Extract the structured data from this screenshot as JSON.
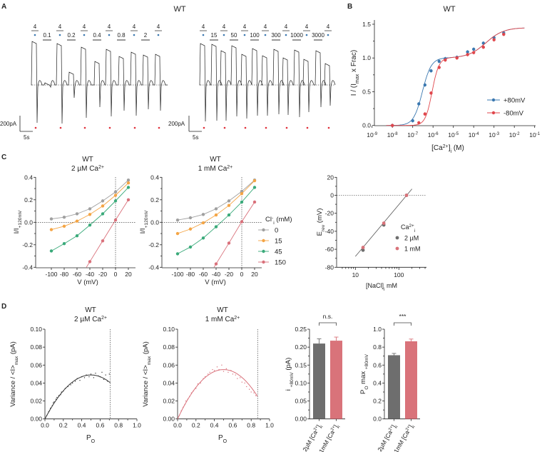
{
  "panel_labels": {
    "A": "A",
    "B": "B",
    "C": "C",
    "D": "D"
  },
  "chart_data": [
    {
      "panel": "A",
      "type": "line",
      "title": "WT",
      "control_label": "4",
      "left_concentrations": [
        "0.1",
        "0.2",
        "0.4",
        "0.8",
        "2"
      ],
      "right_concentrations": [
        "15",
        "50",
        "100",
        "300",
        "1000",
        "3000"
      ],
      "scale_current": "200pA",
      "scale_time": "5s",
      "colors": {
        "trace": "#222222",
        "control_dot": "#3b78b0",
        "marker_dot": "#e0303a",
        "solution_bar": "#999999"
      }
    },
    {
      "panel": "B",
      "type": "line",
      "title": "WT",
      "xscale": "log",
      "xlim": [
        1e-09,
        0.1
      ],
      "ylim": [
        0,
        1.5
      ],
      "xticks": [
        {
          "base": "10",
          "exp": "-9"
        },
        {
          "base": "10",
          "exp": "-8"
        },
        {
          "base": "10",
          "exp": "-7"
        },
        {
          "base": "10",
          "exp": "-6"
        },
        {
          "base": "10",
          "exp": "-5"
        },
        {
          "base": "10",
          "exp": "-4"
        },
        {
          "base": "10",
          "exp": "-3"
        },
        {
          "base": "10",
          "exp": "-2"
        },
        {
          "base": "10",
          "exp": "-1"
        }
      ],
      "yticks": [
        "0.0",
        "0.5",
        "1.0",
        "1.5"
      ],
      "xlabel": [
        {
          "t": "[Ca"
        },
        {
          "t": "2+",
          "s": "sup"
        },
        {
          "t": "]"
        },
        {
          "t": "i",
          "s": "sub"
        },
        {
          "t": " (M)"
        }
      ],
      "ylabel": [
        {
          "t": "I / (I"
        },
        {
          "t": "max",
          "s": "sub"
        },
        {
          "t": " x Frac)"
        }
      ],
      "legend": "bottom-right",
      "series": [
        {
          "name": "+80mV",
          "color": "#3b78b0",
          "x": [
            1e-08,
            1e-07,
            2e-07,
            4e-07,
            8e-07,
            2e-06,
            4e-06,
            1.5e-05,
            5e-05,
            0.0001,
            0.0003,
            0.001,
            0.003
          ],
          "y": [
            0.0,
            0.07,
            0.32,
            0.6,
            0.81,
            0.95,
            0.99,
            1.01,
            1.09,
            1.13,
            1.22,
            1.3,
            1.37
          ]
        },
        {
          "name": "-80mV",
          "color": "#e0474c",
          "x": [
            1e-08,
            2e-07,
            4e-07,
            8e-07,
            2e-06,
            4e-06,
            1.5e-05,
            5e-05,
            0.0001,
            0.0003,
            0.001,
            0.003
          ],
          "y": [
            0.0,
            0.04,
            0.17,
            0.48,
            0.86,
            0.97,
            1.0,
            1.05,
            1.08,
            1.16,
            1.27,
            1.35
          ]
        }
      ]
    },
    {
      "panel": "C1",
      "type": "line",
      "title": "WT",
      "subtitle": [
        {
          "t": "2 µM Ca"
        },
        {
          "t": "2+",
          "s": "sup"
        }
      ],
      "xlim": [
        -100,
        20
      ],
      "ylim": [
        -0.4,
        0.4
      ],
      "xticks": [
        "-100",
        "-80",
        "-60",
        "-40",
        "-20",
        "0",
        "20"
      ],
      "yticks": [
        "-0.4",
        "-0.2",
        "0.0",
        "0.2",
        "0.4"
      ],
      "xlabel": "V (mV)",
      "ylabel": [
        {
          "t": "I/I"
        },
        {
          "t": "+120mV",
          "s": "sub"
        }
      ],
      "series": [
        {
          "name": "0",
          "color": "#a0a0a0",
          "x": [
            -100,
            -80,
            -60,
            -40,
            -20,
            0,
            20
          ],
          "y": [
            0.03,
            0.045,
            0.075,
            0.12,
            0.19,
            0.27,
            0.375
          ]
        },
        {
          "name": "15",
          "color": "#f4a545",
          "x": [
            -100,
            -80,
            -60,
            -40,
            -20,
            0,
            20
          ],
          "y": [
            -0.065,
            -0.035,
            0.01,
            0.07,
            0.145,
            0.24,
            0.35
          ]
        },
        {
          "name": "45",
          "color": "#3aaa7a",
          "x": [
            -100,
            -80,
            -60,
            -40,
            -20,
            0,
            20
          ],
          "y": [
            -0.255,
            -0.19,
            -0.12,
            -0.025,
            0.075,
            0.19,
            0.31
          ]
        },
        {
          "name": "150",
          "color": "#d9707a",
          "x": [
            -40,
            -20,
            0,
            20
          ],
          "y": [
            -0.35,
            -0.165,
            0.02,
            0.2
          ]
        }
      ]
    },
    {
      "panel": "C2",
      "type": "line",
      "title": "WT",
      "subtitle": [
        {
          "t": "1 mM Ca"
        },
        {
          "t": "2+",
          "s": "sup"
        }
      ],
      "xlim": [
        -100,
        20
      ],
      "ylim": [
        -0.4,
        0.4
      ],
      "xticks": [
        "-100",
        "-80",
        "-60",
        "-40",
        "-20",
        "0",
        "20"
      ],
      "yticks": [
        "-0.4",
        "-0.2",
        "0.0",
        "0.2",
        "0.4"
      ],
      "xlabel": "V (mV)",
      "ylabel": [
        {
          "t": "I/I"
        },
        {
          "t": "+120mV",
          "s": "sub"
        }
      ],
      "legend_title": [
        {
          "t": "Cl"
        },
        {
          "t": "-",
          "s": "sup"
        },
        {
          "t": "i",
          "s": "sub"
        },
        {
          "t": " (mM)"
        }
      ],
      "legend": "right",
      "series": [
        {
          "name": "0",
          "color": "#a0a0a0",
          "x": [
            -100,
            -80,
            -60,
            -40,
            -20,
            0,
            20
          ],
          "y": [
            0.02,
            0.04,
            0.07,
            0.12,
            0.19,
            0.275,
            0.375
          ]
        },
        {
          "name": "15",
          "color": "#f4a545",
          "x": [
            -100,
            -80,
            -60,
            -40,
            -20,
            0,
            20
          ],
          "y": [
            -0.1,
            -0.06,
            -0.005,
            0.065,
            0.15,
            0.255,
            0.37
          ]
        },
        {
          "name": "45",
          "color": "#3aaa7a",
          "x": [
            -100,
            -80,
            -60,
            -40,
            -20,
            0,
            20
          ],
          "y": [
            -0.28,
            -0.22,
            -0.14,
            -0.04,
            0.065,
            0.18,
            0.31
          ]
        },
        {
          "name": "150",
          "color": "#d9707a",
          "x": [
            -40,
            -20,
            0,
            20
          ],
          "y": [
            -0.37,
            -0.185,
            0.005,
            0.18
          ]
        }
      ]
    },
    {
      "panel": "C3",
      "type": "scatter",
      "xscale": "log",
      "xlim": [
        3.7,
        430
      ],
      "ylim": [
        -80,
        20
      ],
      "xticks": [
        "10",
        "100"
      ],
      "yticks": [
        "-80",
        "-60",
        "-40",
        "-20",
        "0",
        "20"
      ],
      "xlabel": [
        {
          "t": "[NaCl]"
        },
        {
          "t": "i",
          "s": "sub"
        },
        {
          "t": " mM"
        }
      ],
      "ylabel": [
        {
          "t": "E"
        },
        {
          "t": "rev",
          "s": "sub"
        },
        {
          "t": " (mV)"
        }
      ],
      "legend_title": [
        {
          "t": "Ca"
        },
        {
          "t": "2+",
          "s": "sup"
        },
        {
          "t": "i",
          "s": "sub"
        }
      ],
      "legend": "right",
      "fit_line": {
        "x": [
          10,
          200
        ],
        "y": [
          -68,
          7
        ]
      },
      "series": [
        {
          "name": "2 µM",
          "color": "#6e6e6e",
          "x": [
            15,
            45,
            150
          ],
          "y": [
            -61,
            -33,
            0
          ]
        },
        {
          "name": "1 mM",
          "color": "#d9737a",
          "x": [
            15,
            45,
            150
          ],
          "y": [
            -58,
            -31,
            0
          ]
        }
      ]
    },
    {
      "panel": "D1",
      "type": "scatter",
      "title": "WT",
      "subtitle": [
        {
          "t": "2 µM Ca"
        },
        {
          "t": "2+",
          "s": "sup"
        }
      ],
      "xlim": [
        0,
        1
      ],
      "ylim": [
        0,
        0.1
      ],
      "xticks": [
        "0.0",
        "0.2",
        "0.4",
        "0.6",
        "0.8",
        "1.0"
      ],
      "yticks": [
        "0.00",
        "0.02",
        "0.04",
        "0.06",
        "0.08",
        "0.10"
      ],
      "xlabel": [
        {
          "t": "P"
        },
        {
          "t": "O",
          "s": "sub"
        }
      ],
      "ylabel": [
        {
          "t": "Variance / <I>"
        },
        {
          "t": "max",
          "s": "sub"
        },
        {
          "t": " (pA)"
        }
      ],
      "color": "#333333",
      "po_max_line": 0.71,
      "fit": {
        "type": "parabola",
        "peak_po": 0.5,
        "peak_variance": 0.049
      },
      "points": [
        [
          0.02,
          0.004
        ],
        [
          0.04,
          0.008
        ],
        [
          0.05,
          0.009
        ],
        [
          0.06,
          0.012
        ],
        [
          0.08,
          0.015
        ],
        [
          0.09,
          0.018
        ],
        [
          0.1,
          0.019
        ],
        [
          0.12,
          0.022
        ],
        [
          0.13,
          0.024
        ],
        [
          0.15,
          0.026
        ],
        [
          0.17,
          0.027
        ],
        [
          0.18,
          0.03
        ],
        [
          0.2,
          0.031
        ],
        [
          0.22,
          0.034
        ],
        [
          0.25,
          0.036
        ],
        [
          0.28,
          0.038
        ],
        [
          0.3,
          0.04
        ],
        [
          0.33,
          0.042
        ],
        [
          0.35,
          0.045
        ],
        [
          0.38,
          0.043
        ],
        [
          0.4,
          0.047
        ],
        [
          0.43,
          0.046
        ],
        [
          0.45,
          0.049
        ],
        [
          0.48,
          0.047
        ],
        [
          0.5,
          0.05
        ],
        [
          0.53,
          0.046
        ],
        [
          0.55,
          0.051
        ],
        [
          0.58,
          0.048
        ],
        [
          0.6,
          0.047
        ],
        [
          0.62,
          0.052
        ],
        [
          0.64,
          0.044
        ],
        [
          0.66,
          0.049
        ],
        [
          0.68,
          0.042
        ],
        [
          0.7,
          0.05
        ]
      ]
    },
    {
      "panel": "D2",
      "type": "scatter",
      "title": "WT",
      "subtitle": [
        {
          "t": "1 mM Ca"
        },
        {
          "t": "2+",
          "s": "sup"
        }
      ],
      "xlim": [
        0,
        1
      ],
      "ylim": [
        0,
        0.1
      ],
      "xticks": [
        "0.0",
        "0.2",
        "0.4",
        "0.6",
        "0.8",
        "1.0"
      ],
      "yticks": [
        "0.00",
        "0.02",
        "0.04",
        "0.06",
        "0.08",
        "0.10"
      ],
      "xlabel": [
        {
          "t": "P"
        },
        {
          "t": "O",
          "s": "sub"
        }
      ],
      "ylabel": [
        {
          "t": "Variance / <I>"
        },
        {
          "t": "max",
          "s": "sub"
        },
        {
          "t": " (pA)"
        }
      ],
      "color": "#d9707a",
      "po_max_line": 0.87,
      "fit": {
        "type": "parabola",
        "peak_po": 0.5,
        "peak_variance": 0.055
      },
      "points": [
        [
          0.02,
          0.004
        ],
        [
          0.04,
          0.009
        ],
        [
          0.06,
          0.013
        ],
        [
          0.08,
          0.016
        ],
        [
          0.09,
          0.02
        ],
        [
          0.11,
          0.022
        ],
        [
          0.13,
          0.025
        ],
        [
          0.15,
          0.029
        ],
        [
          0.17,
          0.031
        ],
        [
          0.2,
          0.034
        ],
        [
          0.22,
          0.039
        ],
        [
          0.25,
          0.04
        ],
        [
          0.28,
          0.045
        ],
        [
          0.3,
          0.047
        ],
        [
          0.33,
          0.05
        ],
        [
          0.35,
          0.052
        ],
        [
          0.38,
          0.055
        ],
        [
          0.4,
          0.054
        ],
        [
          0.43,
          0.058
        ],
        [
          0.45,
          0.055
        ],
        [
          0.48,
          0.06
        ],
        [
          0.5,
          0.053
        ],
        [
          0.53,
          0.056
        ],
        [
          0.55,
          0.052
        ],
        [
          0.58,
          0.054
        ],
        [
          0.6,
          0.05
        ],
        [
          0.63,
          0.049
        ],
        [
          0.65,
          0.045
        ],
        [
          0.68,
          0.046
        ],
        [
          0.7,
          0.041
        ],
        [
          0.73,
          0.04
        ],
        [
          0.75,
          0.036
        ],
        [
          0.78,
          0.033
        ],
        [
          0.8,
          0.03
        ],
        [
          0.83,
          0.029
        ],
        [
          0.85,
          0.026
        ]
      ]
    },
    {
      "panel": "D3",
      "type": "bar",
      "ylim": [
        0,
        0.25
      ],
      "yticks": [
        "0.00",
        "0.05",
        "0.10",
        "0.15",
        "0.20",
        "0.25"
      ],
      "ylabel": [
        {
          "t": "i "
        },
        {
          "t": "+80mV",
          "s": "sub"
        },
        {
          "t": " (pA)"
        }
      ],
      "categories": [
        [
          {
            "t": "2µM [Ca"
          },
          {
            "t": "2+",
            "s": "sup"
          },
          {
            "t": "]"
          },
          {
            "t": "i",
            "s": "sub"
          }
        ],
        [
          {
            "t": "1mM [Ca"
          },
          {
            "t": "2+",
            "s": "sup"
          },
          {
            "t": "]"
          },
          {
            "t": "i",
            "s": "sub"
          }
        ]
      ],
      "values": [
        0.21,
        0.218
      ],
      "errors": [
        0.013,
        0.01
      ],
      "colors": [
        "#6e6e6e",
        "#d9737a"
      ],
      "annotation": "n.s."
    },
    {
      "panel": "D4",
      "type": "bar",
      "ylim": [
        0,
        1.0
      ],
      "yticks": [
        "0.0",
        "0.2",
        "0.4",
        "0.6",
        "0.8",
        "1.0"
      ],
      "ylabel": [
        {
          "t": "P"
        },
        {
          "t": "O",
          "s": "sub"
        },
        {
          "t": " max "
        },
        {
          "t": "+80mV",
          "s": "sub"
        }
      ],
      "categories": [
        [
          {
            "t": "2µM [Ca"
          },
          {
            "t": "2+",
            "s": "sup"
          },
          {
            "t": "]"
          },
          {
            "t": "i",
            "s": "sub"
          }
        ],
        [
          {
            "t": "1mM [Ca"
          },
          {
            "t": "2+",
            "s": "sup"
          },
          {
            "t": "]"
          },
          {
            "t": "i",
            "s": "sub"
          }
        ]
      ],
      "values": [
        0.71,
        0.865
      ],
      "errors": [
        0.02,
        0.025
      ],
      "colors": [
        "#6e6e6e",
        "#d9737a"
      ],
      "annotation": "***"
    }
  ]
}
